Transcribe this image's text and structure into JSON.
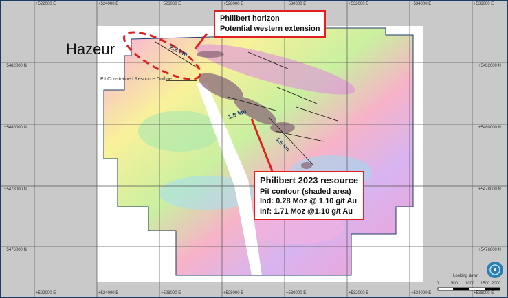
{
  "title_label": "Hazeur",
  "callout_top": {
    "line1": "Philibert horizon",
    "line2": "Potential western extension"
  },
  "callout_bottom": {
    "title": "Philibert 2023 resource",
    "line1": "Pit contour (shaded area)",
    "line2": "Ind: 0.28 Moz @ 1.10 g/t Au",
    "line3": "Inf:  1.71 Moz @1.10 g/t Au"
  },
  "pit_label": "Pit Constrained Resource Outline",
  "distances": [
    "2.2 km",
    "1.8 km",
    "1.5 km"
  ],
  "easting_labels": [
    "+522000 E",
    "+524000 E",
    "+526000 E",
    "+528000 E",
    "+530000 E",
    "+532000 E",
    "+534000 E",
    "+536000 E"
  ],
  "northing_labels": [
    "+5482000 N",
    "+5480000 N",
    "+5478000 N",
    "+5476000 N"
  ],
  "view_label": "Looking down",
  "scale_labels": [
    "0",
    "500",
    "1000",
    "1500",
    "2000"
  ],
  "colors": {
    "callout_border": "#e02020",
    "grid": "#555555",
    "outline": "#1e3a6e"
  },
  "icons": [
    "compass-globe-icon"
  ]
}
